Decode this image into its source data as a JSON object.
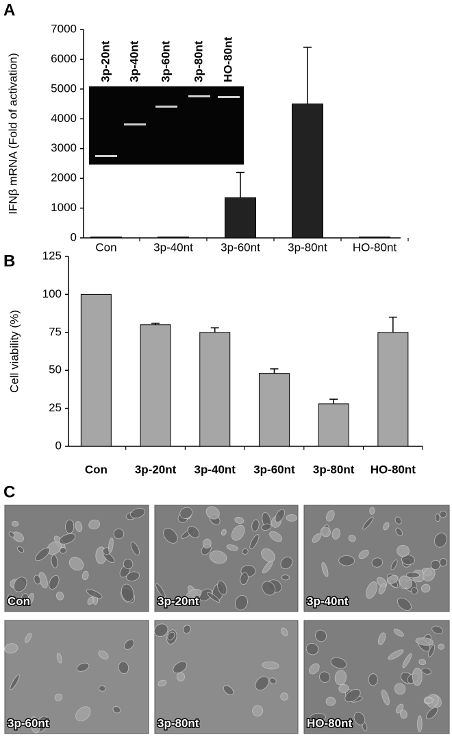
{
  "chart_data": [
    {
      "type": "bar",
      "panel": "A",
      "ylabel": "IFNβ mRNA (Fold of activation)",
      "categories": [
        "Con",
        "3p-40nt",
        "3p-60nt",
        "3p-80nt",
        "HO-80nt"
      ],
      "values": [
        30,
        30,
        1350,
        4500,
        30
      ],
      "errors": [
        0,
        0,
        850,
        1900,
        0
      ],
      "color": "#222222",
      "ylim": [
        0,
        7000
      ],
      "yticks": [
        0,
        1000,
        2000,
        3000,
        4000,
        5000,
        6000,
        7000
      ],
      "inset_lanes": [
        "3p-20nt",
        "3p-40nt",
        "3p-60nt",
        "3p-80nt",
        "HO-80nt"
      ]
    },
    {
      "type": "bar",
      "panel": "B",
      "ylabel": "Cell viability (%)",
      "categories": [
        "Con",
        "3p-20nt",
        "3p-40nt",
        "3p-60nt",
        "3p-80nt",
        "HO-80nt"
      ],
      "values": [
        100,
        80,
        75,
        48,
        28,
        75
      ],
      "errors": [
        0,
        1,
        3,
        3,
        3,
        10
      ],
      "color": "#a6a6a6",
      "ylim": [
        0,
        125
      ],
      "yticks": [
        0,
        25,
        50,
        75,
        100,
        125
      ]
    }
  ],
  "panel_c": {
    "panel": "C",
    "images": [
      "Con",
      "3p-20nt",
      "3p-40nt",
      "3p-60nt",
      "3p-80nt",
      "HO-80nt"
    ]
  }
}
